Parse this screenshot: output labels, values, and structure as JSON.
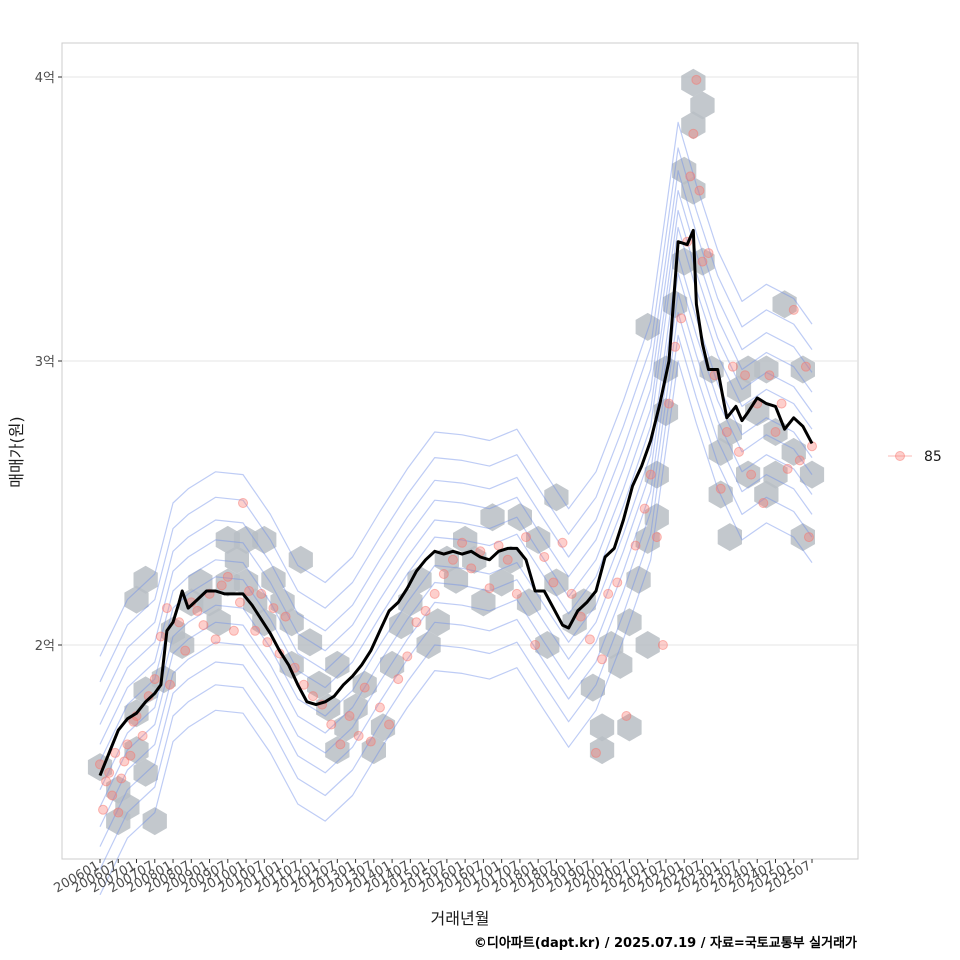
{
  "caption": "©디아파트(dapt.kr) / 2025.07.19 / 자료=국토교통부 실거래가",
  "chart_data": {
    "type": "scatter",
    "xlabel": "거래년월",
    "ylabel": "매매가(원)",
    "y_unit": "억",
    "ylim": [
      1.28,
      4.13
    ],
    "y_ticks": [
      {
        "value": 2,
        "label": "2억"
      },
      {
        "value": 3,
        "label": "3억"
      },
      {
        "value": 4,
        "label": "4억"
      }
    ],
    "x_range": [
      "2006-01",
      "2025-07"
    ],
    "x_tick_labels": [
      "200601",
      "200607",
      "200701",
      "200707",
      "200801",
      "200807",
      "200901",
      "200907",
      "201001",
      "201007",
      "201101",
      "201107",
      "201201",
      "201207",
      "201301",
      "201307",
      "201401",
      "201407",
      "201501",
      "201507",
      "201601",
      "201607",
      "201701",
      "201707",
      "201801",
      "201807",
      "201901",
      "201907",
      "202001",
      "202007",
      "202101",
      "202107",
      "202201",
      "202207",
      "202301",
      "202307",
      "202401",
      "202407",
      "202501",
      "202507"
    ],
    "grid": true,
    "legend": {
      "position": "right",
      "entries": [
        "85"
      ]
    },
    "colors": {
      "points": "#f8766d",
      "trend": "#000000",
      "density": "#6f8fe8",
      "hex": "#b8bec4",
      "grid": "#e5e5e5"
    },
    "layers": [
      "hexbin",
      "density-contours",
      "points",
      "moving-average-line"
    ],
    "series": [
      {
        "name": "85",
        "points": [
          [
            "2006-01",
            1.58
          ],
          [
            "2006-02",
            1.42
          ],
          [
            "2006-03",
            1.52
          ],
          [
            "2006-04",
            1.55
          ],
          [
            "2006-05",
            1.47
          ],
          [
            "2006-06",
            1.62
          ],
          [
            "2006-07",
            1.41
          ],
          [
            "2006-08",
            1.53
          ],
          [
            "2006-09",
            1.59
          ],
          [
            "2006-10",
            1.65
          ],
          [
            "2006-11",
            1.61
          ],
          [
            "2006-12",
            1.73
          ],
          [
            "2007-01",
            1.75
          ],
          [
            "2007-03",
            1.68
          ],
          [
            "2007-05",
            1.82
          ],
          [
            "2007-07",
            1.88
          ],
          [
            "2007-09",
            2.03
          ],
          [
            "2007-11",
            2.13
          ],
          [
            "2007-12",
            1.86
          ],
          [
            "2008-03",
            2.08
          ],
          [
            "2008-05",
            1.98
          ],
          [
            "2008-07",
            2.15
          ],
          [
            "2008-09",
            2.12
          ],
          [
            "2008-11",
            2.07
          ],
          [
            "2009-01",
            2.18
          ],
          [
            "2009-03",
            2.02
          ],
          [
            "2009-05",
            2.21
          ],
          [
            "2009-07",
            2.24
          ],
          [
            "2009-09",
            2.05
          ],
          [
            "2009-11",
            2.15
          ],
          [
            "2009-12",
            2.5
          ],
          [
            "2010-02",
            2.19
          ],
          [
            "2010-04",
            2.05
          ],
          [
            "2010-06",
            2.18
          ],
          [
            "2010-08",
            2.01
          ],
          [
            "2010-10",
            2.13
          ],
          [
            "2010-12",
            1.97
          ],
          [
            "2011-02",
            2.1
          ],
          [
            "2011-05",
            1.92
          ],
          [
            "2011-08",
            1.86
          ],
          [
            "2011-11",
            1.82
          ],
          [
            "2012-02",
            1.79
          ],
          [
            "2012-05",
            1.72
          ],
          [
            "2012-08",
            1.65
          ],
          [
            "2012-11",
            1.75
          ],
          [
            "2013-02",
            1.68
          ],
          [
            "2013-04",
            1.85
          ],
          [
            "2013-06",
            1.66
          ],
          [
            "2013-09",
            1.78
          ],
          [
            "2013-12",
            1.72
          ],
          [
            "2014-03",
            1.88
          ],
          [
            "2014-06",
            1.96
          ],
          [
            "2014-09",
            2.08
          ],
          [
            "2014-12",
            2.12
          ],
          [
            "2015-03",
            2.18
          ],
          [
            "2015-06",
            2.25
          ],
          [
            "2015-09",
            2.3
          ],
          [
            "2015-12",
            2.36
          ],
          [
            "2016-03",
            2.27
          ],
          [
            "2016-06",
            2.33
          ],
          [
            "2016-09",
            2.2
          ],
          [
            "2016-12",
            2.35
          ],
          [
            "2017-03",
            2.3
          ],
          [
            "2017-06",
            2.18
          ],
          [
            "2017-09",
            2.38
          ],
          [
            "2017-12",
            2.0
          ],
          [
            "2018-03",
            2.31
          ],
          [
            "2018-06",
            2.22
          ],
          [
            "2018-09",
            2.36
          ],
          [
            "2018-12",
            2.18
          ],
          [
            "2019-03",
            2.1
          ],
          [
            "2019-06",
            2.02
          ],
          [
            "2019-08",
            1.62
          ],
          [
            "2019-10",
            1.95
          ],
          [
            "2019-12",
            2.18
          ],
          [
            "2020-03",
            2.22
          ],
          [
            "2020-06",
            1.75
          ],
          [
            "2020-09",
            2.35
          ],
          [
            "2020-12",
            2.48
          ],
          [
            "2021-02",
            2.6
          ],
          [
            "2021-04",
            2.38
          ],
          [
            "2021-06",
            2.0
          ],
          [
            "2021-08",
            2.85
          ],
          [
            "2021-10",
            3.05
          ],
          [
            "2021-12",
            3.15
          ],
          [
            "2022-02",
            3.42
          ],
          [
            "2022-03",
            3.65
          ],
          [
            "2022-04",
            3.8
          ],
          [
            "2022-05",
            3.99
          ],
          [
            "2022-06",
            3.6
          ],
          [
            "2022-07",
            3.35
          ],
          [
            "2022-09",
            3.38
          ],
          [
            "2022-11",
            2.95
          ],
          [
            "2023-01",
            2.55
          ],
          [
            "2023-03",
            2.75
          ],
          [
            "2023-05",
            2.98
          ],
          [
            "2023-07",
            2.68
          ],
          [
            "2023-09",
            2.95
          ],
          [
            "2023-11",
            2.6
          ],
          [
            "2024-01",
            2.85
          ],
          [
            "2024-03",
            2.5
          ],
          [
            "2024-05",
            2.95
          ],
          [
            "2024-07",
            2.75
          ],
          [
            "2024-09",
            2.85
          ],
          [
            "2024-11",
            2.62
          ],
          [
            "2025-01",
            3.18
          ],
          [
            "2025-03",
            2.65
          ],
          [
            "2025-05",
            2.98
          ],
          [
            "2025-06",
            2.38
          ],
          [
            "2025-07",
            2.7
          ]
        ]
      },
      {
        "name": "moving average",
        "line": [
          [
            "2006-01",
            1.54
          ],
          [
            "2006-04",
            1.62
          ],
          [
            "2006-07",
            1.7
          ],
          [
            "2006-10",
            1.74
          ],
          [
            "2007-01",
            1.76
          ],
          [
            "2007-04",
            1.8
          ],
          [
            "2007-07",
            1.83
          ],
          [
            "2007-09",
            1.86
          ],
          [
            "2007-11",
            2.05
          ],
          [
            "2008-01",
            2.08
          ],
          [
            "2008-03",
            2.15
          ],
          [
            "2008-04",
            2.19
          ],
          [
            "2008-06",
            2.13
          ],
          [
            "2008-09",
            2.16
          ],
          [
            "2008-12",
            2.19
          ],
          [
            "2009-03",
            2.19
          ],
          [
            "2009-06",
            2.18
          ],
          [
            "2009-09",
            2.18
          ],
          [
            "2009-12",
            2.18
          ],
          [
            "2010-03",
            2.14
          ],
          [
            "2010-06",
            2.09
          ],
          [
            "2010-09",
            2.04
          ],
          [
            "2010-12",
            1.98
          ],
          [
            "2011-03",
            1.93
          ],
          [
            "2011-06",
            1.86
          ],
          [
            "2011-09",
            1.8
          ],
          [
            "2011-12",
            1.79
          ],
          [
            "2012-03",
            1.8
          ],
          [
            "2012-06",
            1.82
          ],
          [
            "2012-09",
            1.86
          ],
          [
            "2012-12",
            1.89
          ],
          [
            "2013-03",
            1.93
          ],
          [
            "2013-06",
            1.98
          ],
          [
            "2013-09",
            2.05
          ],
          [
            "2013-12",
            2.12
          ],
          [
            "2014-03",
            2.15
          ],
          [
            "2014-06",
            2.2
          ],
          [
            "2014-09",
            2.26
          ],
          [
            "2014-12",
            2.3
          ],
          [
            "2015-03",
            2.33
          ],
          [
            "2015-06",
            2.32
          ],
          [
            "2015-09",
            2.33
          ],
          [
            "2015-12",
            2.32
          ],
          [
            "2016-03",
            2.33
          ],
          [
            "2016-06",
            2.31
          ],
          [
            "2016-09",
            2.3
          ],
          [
            "2016-12",
            2.33
          ],
          [
            "2017-03",
            2.34
          ],
          [
            "2017-06",
            2.34
          ],
          [
            "2017-09",
            2.3
          ],
          [
            "2017-12",
            2.19
          ],
          [
            "2018-03",
            2.19
          ],
          [
            "2018-06",
            2.13
          ],
          [
            "2018-09",
            2.07
          ],
          [
            "2018-11",
            2.06
          ],
          [
            "2019-02",
            2.12
          ],
          [
            "2019-05",
            2.15
          ],
          [
            "2019-08",
            2.19
          ],
          [
            "2019-11",
            2.31
          ],
          [
            "2020-02",
            2.34
          ],
          [
            "2020-05",
            2.44
          ],
          [
            "2020-08",
            2.56
          ],
          [
            "2020-11",
            2.63
          ],
          [
            "2021-02",
            2.72
          ],
          [
            "2021-05",
            2.85
          ],
          [
            "2021-08",
            3.0
          ],
          [
            "2021-11",
            3.42
          ],
          [
            "2022-02",
            3.41
          ],
          [
            "2022-04",
            3.46
          ],
          [
            "2022-05",
            3.2
          ],
          [
            "2022-07",
            3.06
          ],
          [
            "2022-09",
            2.97
          ],
          [
            "2022-12",
            2.97
          ],
          [
            "2023-03",
            2.8
          ],
          [
            "2023-06",
            2.84
          ],
          [
            "2023-08",
            2.79
          ],
          [
            "2023-10",
            2.82
          ],
          [
            "2024-01",
            2.87
          ],
          [
            "2024-04",
            2.85
          ],
          [
            "2024-07",
            2.84
          ],
          [
            "2024-10",
            2.76
          ],
          [
            "2025-01",
            2.8
          ],
          [
            "2025-04",
            2.77
          ],
          [
            "2025-07",
            2.71
          ]
        ]
      }
    ],
    "hexbins": [
      [
        "2006-01",
        1.57
      ],
      [
        "2006-07",
        1.49
      ],
      [
        "2006-07",
        1.38
      ],
      [
        "2006-10",
        1.43
      ],
      [
        "2007-01",
        1.76
      ],
      [
        "2007-01",
        1.63
      ],
      [
        "2007-04",
        1.55
      ],
      [
        "2007-07",
        1.38
      ],
      [
        "2007-04",
        1.84
      ],
      [
        "2007-10",
        1.88
      ],
      [
        "2008-01",
        2.05
      ],
      [
        "2008-04",
        2.0
      ],
      [
        "2007-01",
        2.16
      ],
      [
        "2007-04",
        2.23
      ],
      [
        "2008-07",
        2.15
      ],
      [
        "2008-10",
        2.22
      ],
      [
        "2009-01",
        2.15
      ],
      [
        "2009-04",
        2.08
      ],
      [
        "2009-07",
        2.22
      ],
      [
        "2009-07",
        2.37
      ],
      [
        "2009-10",
        2.3
      ],
      [
        "2010-01",
        2.22
      ],
      [
        "2010-04",
        2.15
      ],
      [
        "2010-01",
        2.37
      ],
      [
        "2010-07",
        2.08
      ],
      [
        "2010-10",
        2.23
      ],
      [
        "2010-07",
        2.37
      ],
      [
        "2011-01",
        2.15
      ],
      [
        "2011-04",
        2.08
      ],
      [
        "2011-07",
        2.3
      ],
      [
        "2011-04",
        1.93
      ],
      [
        "2011-10",
        2.01
      ],
      [
        "2012-01",
        1.86
      ],
      [
        "2012-04",
        1.78
      ],
      [
        "2012-07",
        1.93
      ],
      [
        "2012-07",
        1.63
      ],
      [
        "2012-10",
        1.71
      ],
      [
        "2013-01",
        1.78
      ],
      [
        "2013-04",
        1.86
      ],
      [
        "2013-07",
        1.63
      ],
      [
        "2013-10",
        1.71
      ],
      [
        "2014-01",
        1.93
      ],
      [
        "2014-04",
        2.07
      ],
      [
        "2014-07",
        2.15
      ],
      [
        "2014-10",
        2.23
      ],
      [
        "2015-01",
        2.0
      ],
      [
        "2015-04",
        2.08
      ],
      [
        "2015-07",
        2.3
      ],
      [
        "2015-10",
        2.23
      ],
      [
        "2016-01",
        2.37
      ],
      [
        "2016-04",
        2.3
      ],
      [
        "2016-07",
        2.15
      ],
      [
        "2016-10",
        2.45
      ],
      [
        "2017-01",
        2.22
      ],
      [
        "2017-04",
        2.3
      ],
      [
        "2017-07",
        2.45
      ],
      [
        "2017-10",
        2.15
      ],
      [
        "2018-01",
        2.37
      ],
      [
        "2018-04",
        2.0
      ],
      [
        "2018-07",
        2.22
      ],
      [
        "2018-07",
        2.52
      ],
      [
        "2019-01",
        2.08
      ],
      [
        "2019-04",
        2.15
      ],
      [
        "2019-07",
        1.85
      ],
      [
        "2019-10",
        1.71
      ],
      [
        "2019-10",
        1.63
      ],
      [
        "2020-01",
        2.0
      ],
      [
        "2020-04",
        1.93
      ],
      [
        "2020-07",
        2.08
      ],
      [
        "2020-07",
        1.71
      ],
      [
        "2020-10",
        2.23
      ],
      [
        "2021-01",
        2.37
      ],
      [
        "2021-01",
        2.0
      ],
      [
        "2021-04",
        2.45
      ],
      [
        "2021-04",
        2.6
      ],
      [
        "2021-07",
        2.82
      ],
      [
        "2021-07",
        2.97
      ],
      [
        "2021-01",
        3.12
      ],
      [
        "2021-10",
        3.2
      ],
      [
        "2022-01",
        3.35
      ],
      [
        "2022-01",
        3.67
      ],
      [
        "2022-04",
        3.6
      ],
      [
        "2022-04",
        3.83
      ],
      [
        "2022-07",
        3.9
      ],
      [
        "2022-04",
        3.98
      ],
      [
        "2022-07",
        3.35
      ],
      [
        "2022-10",
        2.97
      ],
      [
        "2023-01",
        2.68
      ],
      [
        "2023-01",
        2.53
      ],
      [
        "2023-04",
        2.75
      ],
      [
        "2023-04",
        2.38
      ],
      [
        "2023-07",
        2.9
      ],
      [
        "2023-10",
        2.97
      ],
      [
        "2023-10",
        2.6
      ],
      [
        "2024-01",
        2.82
      ],
      [
        "2024-04",
        2.97
      ],
      [
        "2024-04",
        2.53
      ],
      [
        "2024-07",
        2.75
      ],
      [
        "2024-07",
        2.6
      ],
      [
        "2024-10",
        3.2
      ],
      [
        "2025-01",
        2.68
      ],
      [
        "2025-04",
        2.97
      ],
      [
        "2025-04",
        2.38
      ],
      [
        "2025-07",
        2.6
      ]
    ]
  }
}
